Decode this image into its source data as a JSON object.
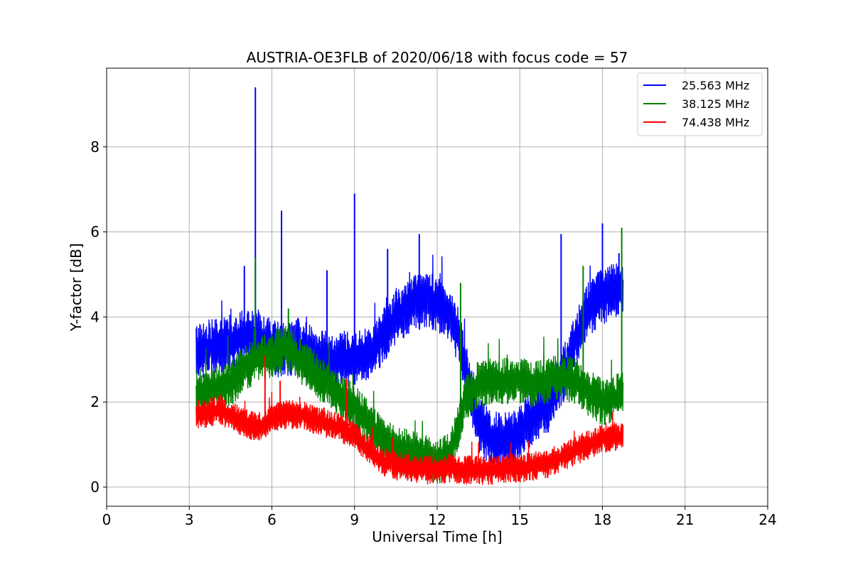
{
  "chart_data": {
    "type": "line",
    "title": "AUSTRIA-OE3FLB of 2020/06/18 with focus code = 57",
    "xlabel": "Universal Time [h]",
    "ylabel": "Y-factor [dB]",
    "xlim": [
      0,
      24
    ],
    "ylim": [
      -0.45,
      9.85
    ],
    "xticks": [
      0,
      3,
      6,
      9,
      12,
      15,
      18,
      21,
      24
    ],
    "yticks": [
      0,
      2,
      4,
      6,
      8
    ],
    "grid": true,
    "legend_position": "top-right",
    "series": [
      {
        "name": "25.563 MHz",
        "color": "#0000ff",
        "noise": 0.55,
        "x": [
          3.25,
          4.0,
          5.0,
          5.5,
          6.0,
          6.5,
          7.0,
          7.5,
          8.0,
          8.5,
          9.0,
          9.5,
          10.0,
          10.5,
          11.0,
          11.5,
          12.0,
          12.5,
          12.8,
          13.0,
          13.5,
          14.0,
          14.5,
          15.0,
          15.5,
          16.0,
          16.5,
          17.0,
          17.5,
          18.0,
          18.5,
          18.75
        ],
        "y": [
          3.2,
          3.3,
          3.5,
          3.5,
          3.3,
          3.2,
          3.3,
          3.1,
          3.0,
          3.0,
          3.0,
          3.1,
          3.5,
          4.0,
          4.3,
          4.4,
          4.3,
          4.0,
          3.5,
          2.8,
          1.5,
          1.1,
          1.1,
          1.3,
          1.7,
          1.9,
          2.5,
          3.4,
          4.2,
          4.5,
          4.6,
          4.6
        ],
        "spikes": [
          [
            5.4,
            9.4
          ],
          [
            5.0,
            5.2
          ],
          [
            6.35,
            6.5
          ],
          [
            9.0,
            6.9
          ],
          [
            8.0,
            5.1
          ],
          [
            10.2,
            5.6
          ],
          [
            11.35,
            5.95
          ],
          [
            16.5,
            5.95
          ],
          [
            18.0,
            6.2
          ],
          [
            18.6,
            5.5
          ]
        ]
      },
      {
        "name": "38.125 MHz",
        "color": "#008000",
        "noise": 0.45,
        "x": [
          3.25,
          4.0,
          4.5,
          5.0,
          5.5,
          6.0,
          6.5,
          7.0,
          7.5,
          8.0,
          8.5,
          9.0,
          9.5,
          10.0,
          10.5,
          11.0,
          11.5,
          12.0,
          12.5,
          12.8,
          13.0,
          13.5,
          14.0,
          14.5,
          15.0,
          15.5,
          16.0,
          16.5,
          17.0,
          17.5,
          18.0,
          18.5,
          18.75
        ],
        "y": [
          2.2,
          2.3,
          2.4,
          2.8,
          3.0,
          3.1,
          3.3,
          3.0,
          2.7,
          2.4,
          2.1,
          1.9,
          1.5,
          1.1,
          0.9,
          0.8,
          0.7,
          0.6,
          0.8,
          1.5,
          2.1,
          2.4,
          2.5,
          2.5,
          2.5,
          2.4,
          2.5,
          2.6,
          2.5,
          2.2,
          2.0,
          2.1,
          2.2
        ],
        "spikes": [
          [
            5.4,
            5.4
          ],
          [
            12.85,
            4.8
          ],
          [
            18.7,
            6.1
          ],
          [
            17.3,
            5.2
          ],
          [
            6.6,
            4.2
          ]
        ]
      },
      {
        "name": "74.438 MHz",
        "color": "#ff0000",
        "noise": 0.28,
        "x": [
          3.25,
          4.0,
          4.5,
          5.0,
          5.5,
          6.0,
          6.5,
          7.0,
          7.5,
          8.0,
          8.5,
          9.0,
          9.5,
          10.0,
          10.5,
          11.0,
          11.5,
          12.0,
          12.5,
          13.0,
          13.5,
          14.0,
          14.5,
          15.0,
          15.5,
          16.0,
          16.5,
          17.0,
          17.5,
          18.0,
          18.5,
          18.75
        ],
        "y": [
          1.7,
          1.8,
          1.7,
          1.5,
          1.4,
          1.6,
          1.7,
          1.7,
          1.6,
          1.5,
          1.4,
          1.2,
          0.9,
          0.6,
          0.5,
          0.45,
          0.4,
          0.4,
          0.45,
          0.4,
          0.4,
          0.4,
          0.45,
          0.45,
          0.5,
          0.55,
          0.7,
          0.85,
          1.0,
          1.15,
          1.2,
          1.2
        ],
        "spikes": [
          [
            5.75,
            3.1
          ],
          [
            8.7,
            2.55
          ],
          [
            6.3,
            2.5
          ]
        ]
      }
    ]
  }
}
